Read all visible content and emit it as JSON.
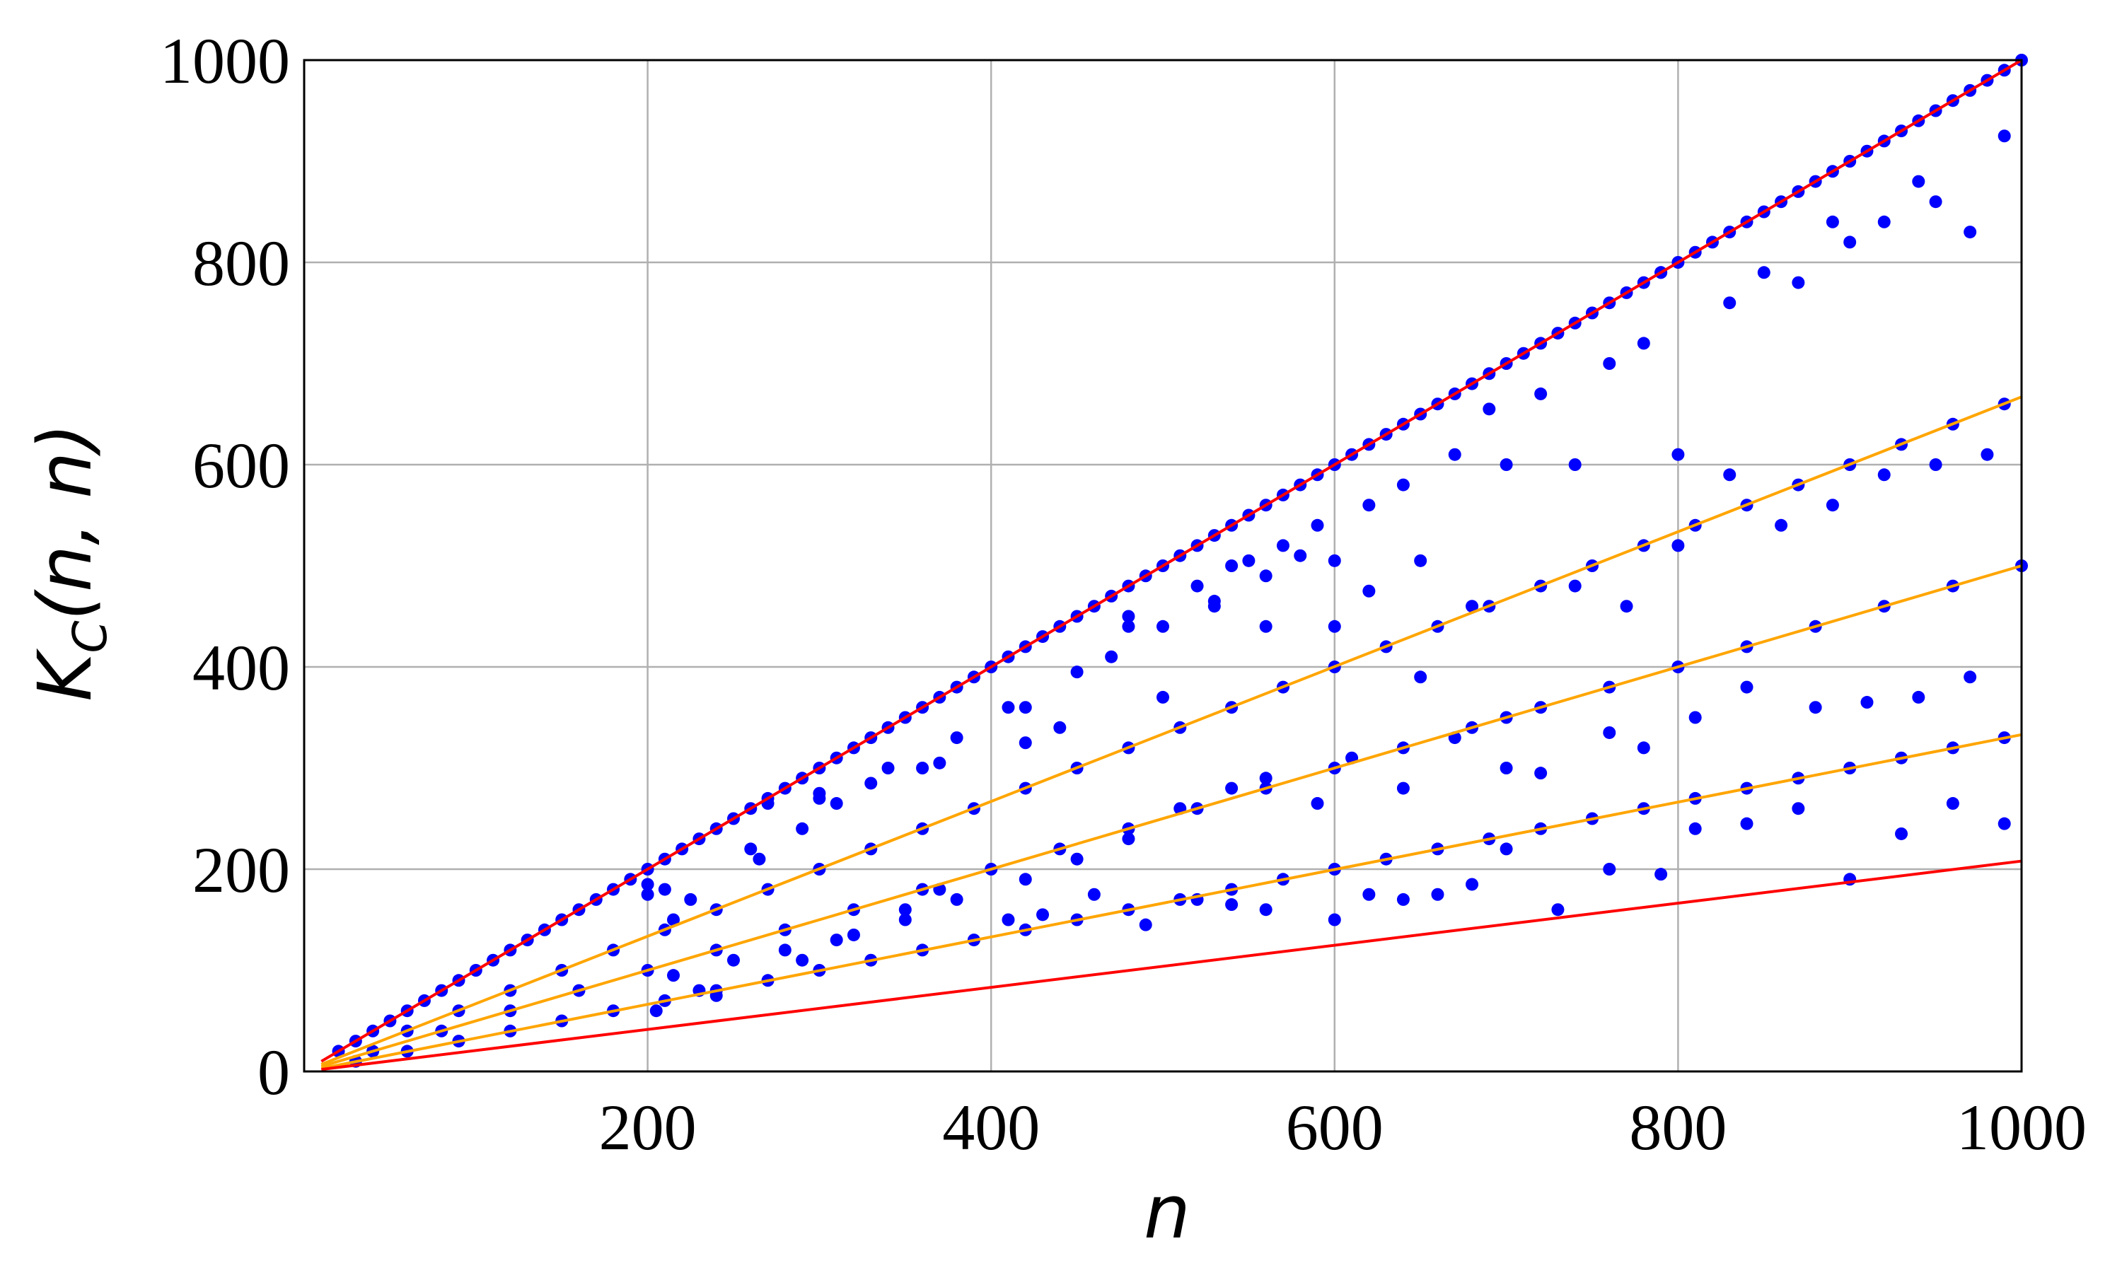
{
  "chart_data": {
    "type": "scatter",
    "title": "",
    "xlabel": "n",
    "ylabel_main": "K",
    "ylabel_sub": "C",
    "ylabel_args": "(n, n)",
    "xlim": [
      0,
      1000
    ],
    "ylim": [
      0,
      1000
    ],
    "x_ticks": [
      200,
      400,
      600,
      800,
      1000
    ],
    "y_ticks": [
      0,
      200,
      400,
      600,
      800,
      1000
    ],
    "grid": true,
    "colors": {
      "points": "#0000ff",
      "bound": "#ff0000",
      "ratio": "#ffa500",
      "grid": "#b0b0b0"
    },
    "lines": [
      {
        "name": "upper bound",
        "color": "#ff0000",
        "x": [
          10,
          1000
        ],
        "y": [
          10,
          1000
        ]
      },
      {
        "name": "2/3 n",
        "color": "#ffa500",
        "x": [
          10,
          1000
        ],
        "y": [
          7,
          667
        ]
      },
      {
        "name": "1/2 n",
        "color": "#ffa500",
        "x": [
          10,
          1000
        ],
        "y": [
          5,
          500
        ]
      },
      {
        "name": "1/3 n",
        "color": "#ffa500",
        "x": [
          10,
          1000
        ],
        "y": [
          3,
          333
        ]
      },
      {
        "name": "lower bound",
        "color": "#ff0000",
        "x": [
          10,
          1000
        ],
        "y": [
          2,
          208
        ]
      }
    ],
    "series": [
      {
        "name": "",
        "x": [
          20,
          30,
          40,
          50,
          60,
          70,
          80,
          90,
          100,
          110,
          120,
          130,
          140,
          150,
          160,
          170,
          180,
          190,
          200,
          210,
          220,
          230,
          240,
          250,
          260,
          270,
          280,
          290,
          300,
          310,
          320,
          330,
          340,
          350,
          360,
          370,
          380,
          390,
          400,
          410,
          420,
          430,
          440,
          450,
          460,
          470,
          480,
          490,
          500,
          510,
          520,
          530,
          540,
          550,
          560,
          570,
          580,
          590,
          600,
          610,
          620,
          630,
          640,
          650,
          660,
          670,
          680,
          690,
          700,
          710,
          720,
          730,
          740,
          750,
          760,
          770,
          780,
          790,
          800,
          810,
          820,
          830,
          840,
          850,
          860,
          870,
          880,
          890,
          900,
          910,
          920,
          930,
          940,
          950,
          960,
          970,
          980,
          990,
          1000,
          60,
          90,
          120,
          150,
          180,
          210,
          240,
          270,
          300,
          330,
          360,
          390,
          420,
          450,
          480,
          510,
          540,
          570,
          600,
          630,
          660,
          690,
          720,
          750,
          780,
          810,
          840,
          870,
          900,
          930,
          960,
          990,
          40,
          80,
          120,
          160,
          200,
          240,
          280,
          320,
          360,
          400,
          440,
          480,
          520,
          560,
          600,
          640,
          680,
          720,
          760,
          800,
          840,
          880,
          920,
          960,
          1000,
          30,
          60,
          90,
          120,
          150,
          180,
          210,
          240,
          270,
          300,
          330,
          360,
          390,
          420,
          450,
          480,
          510,
          540,
          570,
          600,
          630,
          660,
          690,
          720,
          750,
          780,
          810,
          840,
          870,
          900,
          930,
          960,
          990,
          200,
          210,
          215,
          260,
          265,
          290,
          300,
          310,
          330,
          360,
          380,
          410,
          420,
          440,
          470,
          480,
          500,
          520,
          530,
          540,
          550,
          560,
          570,
          580,
          590,
          600,
          620,
          640,
          650,
          670,
          690,
          700,
          720,
          740,
          760,
          780,
          790,
          800,
          830,
          850,
          870,
          890,
          900,
          920,
          940,
          950,
          970,
          990,
          215,
          230,
          250,
          280,
          320,
          350,
          370,
          410,
          430,
          460,
          490,
          520,
          540,
          560,
          600,
          620,
          640,
          660,
          680,
          700,
          730,
          760,
          790,
          810,
          840,
          870,
          900,
          930,
          960,
          990,
          205,
          240,
          290,
          310,
          350,
          380,
          420,
          450,
          480,
          510,
          540,
          560,
          590,
          610,
          640,
          670,
          700,
          720,
          760,
          780,
          810,
          840,
          880,
          910,
          940,
          970,
          200,
          225,
          270,
          300,
          340,
          370,
          420,
          450,
          480,
          500,
          530,
          560,
          600,
          620,
          650,
          680,
          700,
          740,
          770,
          800,
          830,
          860,
          890,
          920,
          950,
          980
        ],
        "y": [
          20,
          30,
          40,
          50,
          60,
          70,
          80,
          90,
          100,
          110,
          120,
          130,
          140,
          150,
          160,
          170,
          180,
          190,
          200,
          210,
          220,
          230,
          240,
          250,
          260,
          270,
          280,
          290,
          300,
          310,
          320,
          330,
          340,
          350,
          360,
          370,
          380,
          390,
          400,
          410,
          420,
          430,
          440,
          450,
          460,
          470,
          480,
          490,
          500,
          510,
          520,
          530,
          540,
          550,
          560,
          570,
          580,
          590,
          600,
          610,
          620,
          630,
          640,
          650,
          660,
          670,
          680,
          690,
          700,
          710,
          720,
          730,
          740,
          750,
          760,
          770,
          780,
          790,
          800,
          810,
          820,
          830,
          840,
          850,
          860,
          870,
          880,
          890,
          900,
          910,
          920,
          930,
          940,
          950,
          960,
          970,
          980,
          990,
          1000,
          40,
          60,
          80,
          100,
          120,
          140,
          160,
          180,
          200,
          220,
          240,
          260,
          280,
          300,
          320,
          340,
          360,
          380,
          400,
          420,
          440,
          460,
          480,
          500,
          520,
          540,
          560,
          580,
          600,
          620,
          640,
          660,
          20,
          40,
          60,
          80,
          100,
          120,
          140,
          160,
          180,
          200,
          220,
          240,
          260,
          280,
          300,
          320,
          340,
          360,
          380,
          400,
          420,
          440,
          460,
          480,
          500,
          10,
          20,
          30,
          40,
          50,
          60,
          70,
          80,
          90,
          100,
          110,
          120,
          130,
          140,
          150,
          160,
          170,
          180,
          190,
          200,
          210,
          220,
          230,
          240,
          250,
          260,
          270,
          280,
          290,
          300,
          310,
          320,
          330,
          175,
          180,
          150,
          220,
          210,
          240,
          270,
          265,
          285,
          300,
          330,
          360,
          325,
          340,
          410,
          450,
          370,
          480,
          460,
          500,
          505,
          440,
          520,
          510,
          540,
          440,
          560,
          580,
          505,
          610,
          655,
          600,
          670,
          600,
          700,
          720,
          790,
          610,
          760,
          790,
          780,
          840,
          820,
          840,
          880,
          860,
          830,
          925,
          95,
          80,
          110,
          120,
          135,
          160,
          180,
          150,
          155,
          175,
          145,
          170,
          165,
          160,
          150,
          175,
          170,
          175,
          185,
          220,
          160,
          200,
          195,
          240,
          245,
          260,
          190,
          235,
          265,
          245,
          60,
          75,
          110,
          130,
          150,
          170,
          190,
          210,
          230,
          260,
          280,
          290,
          265,
          310,
          280,
          330,
          300,
          295,
          335,
          320,
          350,
          380,
          360,
          365,
          370,
          390,
          185,
          170,
          265,
          275,
          300,
          305,
          360,
          395,
          440,
          440,
          465,
          490,
          505,
          475,
          390,
          460,
          350,
          480,
          460,
          520,
          590,
          540,
          560,
          590,
          600,
          610
        ]
      }
    ]
  }
}
